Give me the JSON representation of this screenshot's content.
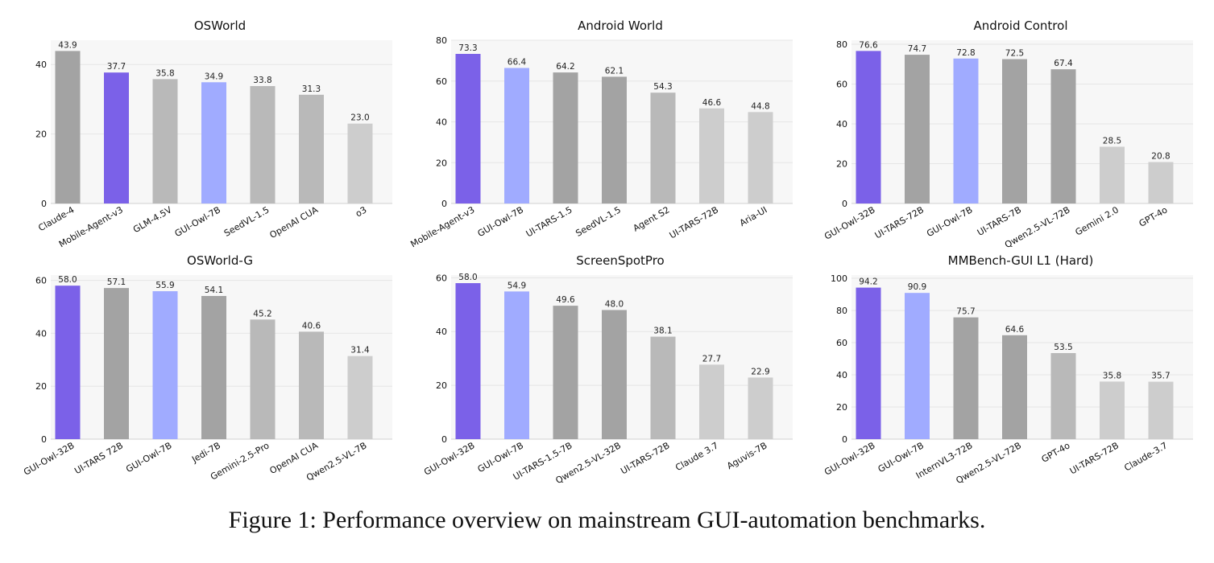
{
  "caption": "Figure 1: Performance overview on mainstream GUI-automation benchmarks.",
  "colors": {
    "highlight_primary": "#7b61e8",
    "highlight_secondary": "#a0abff",
    "gray_dark": "#a3a3a3",
    "gray_mid": "#b9b9b9",
    "gray_light": "#cdcdcd",
    "plot_background": "#f7f7f7",
    "grid": "#e6e6e6"
  },
  "chart_data": [
    {
      "type": "bar",
      "title": "OSWorld",
      "categories": [
        "Claude-4",
        "Mobile-Agent-v3",
        "GLM-4.5V",
        "GUI-Owl-7B",
        "SeedVL-1.5",
        "OpenAI CUA",
        "o3"
      ],
      "values": [
        43.9,
        37.7,
        35.8,
        34.9,
        33.8,
        31.3,
        23.0
      ],
      "value_labels": [
        "43.9",
        "37.7",
        "35.8",
        "34.9",
        "33.8",
        "31.3",
        "23.0"
      ],
      "bar_colors": [
        "gray_dark",
        "highlight_primary",
        "gray_mid",
        "highlight_secondary",
        "gray_mid",
        "gray_mid",
        "gray_light"
      ],
      "ylim": [
        0,
        47
      ],
      "yticks": [
        0,
        20,
        40
      ],
      "grid": true
    },
    {
      "type": "bar",
      "title": "Android World",
      "categories": [
        "Mobile-Agent-v3",
        "GUI-Owl-7B",
        "UI-TARS-1.5",
        "SeedVL-1.5",
        "Agent S2",
        "UI-TARS-72B",
        "Aria-UI"
      ],
      "values": [
        73.3,
        66.4,
        64.2,
        62.1,
        54.3,
        46.6,
        44.8
      ],
      "value_labels": [
        "73.3",
        "66.4",
        "64.2",
        "62.1",
        "54.3",
        "46.6",
        "44.8"
      ],
      "bar_colors": [
        "highlight_primary",
        "highlight_secondary",
        "gray_dark",
        "gray_dark",
        "gray_mid",
        "gray_light",
        "gray_light"
      ],
      "ylim": [
        0,
        80
      ],
      "yticks": [
        0,
        20,
        40,
        60,
        80
      ],
      "grid": true
    },
    {
      "type": "bar",
      "title": "Android Control",
      "categories": [
        "GUI-Owl-32B",
        "UI-TARS-72B",
        "GUI-Owl-7B",
        "UI-TARS-7B",
        "Qwen2.5-VL-72B",
        "Gemini 2.0",
        "GPT-4o"
      ],
      "values": [
        76.6,
        74.7,
        72.8,
        72.5,
        67.4,
        28.5,
        20.8
      ],
      "value_labels": [
        "76.6",
        "74.7",
        "72.8",
        "72.5",
        "67.4",
        "28.5",
        "20.8"
      ],
      "bar_colors": [
        "highlight_primary",
        "gray_dark",
        "highlight_secondary",
        "gray_dark",
        "gray_dark",
        "gray_light",
        "gray_light"
      ],
      "ylim": [
        0,
        82
      ],
      "yticks": [
        0,
        20,
        40,
        60,
        80
      ],
      "grid": true
    },
    {
      "type": "bar",
      "title": "OSWorld-G",
      "categories": [
        "GUI-Owl-32B",
        "UI-TARS 72B",
        "GUI-Owl-7B",
        "Jedi-7B",
        "Gemini-2.5-Pro",
        "OpenAI CUA",
        "Qwen2.5-VL-7B"
      ],
      "values": [
        58.0,
        57.1,
        55.9,
        54.1,
        45.2,
        40.6,
        31.4
      ],
      "value_labels": [
        "58.0",
        "57.1",
        "55.9",
        "54.1",
        "45.2",
        "40.6",
        "31.4"
      ],
      "bar_colors": [
        "highlight_primary",
        "gray_dark",
        "highlight_secondary",
        "gray_dark",
        "gray_mid",
        "gray_mid",
        "gray_light"
      ],
      "ylim": [
        0,
        62
      ],
      "yticks": [
        0,
        20,
        40,
        60
      ],
      "grid": true
    },
    {
      "type": "bar",
      "title": "ScreenSpotPro",
      "categories": [
        "GUI-Owl-32B",
        "GUI-Owl-7B",
        "UI-TARS-1.5-7B",
        "Qwen2.5-VL-32B",
        "UI-TARS-72B",
        "Claude 3.7",
        "Aguvis-7B"
      ],
      "values": [
        58.0,
        54.9,
        49.6,
        48.0,
        38.1,
        27.7,
        22.9
      ],
      "value_labels": [
        "58.0",
        "54.9",
        "49.6",
        "48.0",
        "38.1",
        "27.7",
        "22.9"
      ],
      "bar_colors": [
        "highlight_primary",
        "highlight_secondary",
        "gray_dark",
        "gray_dark",
        "gray_mid",
        "gray_light",
        "gray_light"
      ],
      "ylim": [
        0,
        61
      ],
      "yticks": [
        0,
        20,
        40,
        60
      ],
      "grid": true
    },
    {
      "type": "bar",
      "title": "MMBench-GUI L1 (Hard)",
      "categories": [
        "GUI-Owl-32B",
        "GUI-Owl-7B",
        "InternVL3-72B",
        "Qwen2.5-VL-72B",
        "GPT-4o",
        "UI-TARS-72B",
        "Claude-3.7"
      ],
      "values": [
        94.2,
        90.9,
        75.7,
        64.6,
        53.5,
        35.8,
        35.7
      ],
      "value_labels": [
        "94.2",
        "90.9",
        "75.7",
        "64.6",
        "53.5",
        "35.8",
        "35.7"
      ],
      "bar_colors": [
        "highlight_primary",
        "highlight_secondary",
        "gray_dark",
        "gray_dark",
        "gray_mid",
        "gray_light",
        "gray_light"
      ],
      "ylim": [
        0,
        102
      ],
      "yticks": [
        0,
        20,
        40,
        60,
        80,
        100
      ],
      "grid": true
    }
  ]
}
